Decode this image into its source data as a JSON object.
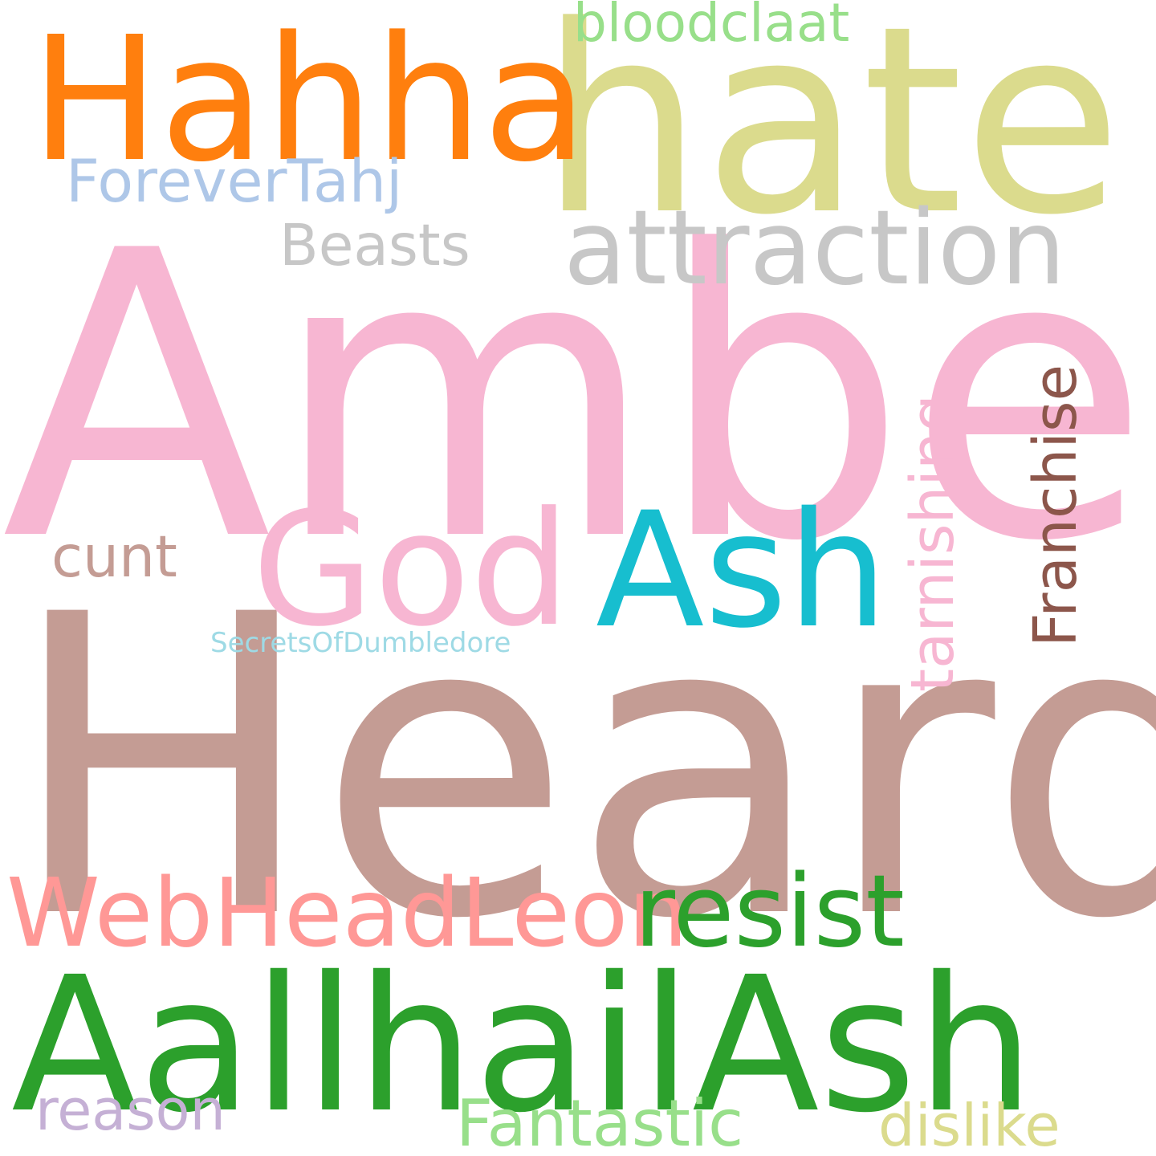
{
  "words": [
    {
      "text": "Amber",
      "color": "#f7b6d2"
    },
    {
      "text": "Heard",
      "color": "#c49c94"
    },
    {
      "text": "hate",
      "color": "#dbdb8d"
    },
    {
      "text": "Hahha",
      "color": "#ff7f0e"
    },
    {
      "text": "AallhailAsh",
      "color": "#2ca02c"
    },
    {
      "text": "attraction",
      "color": "#c7c7c7"
    },
    {
      "text": "God",
      "color": "#f7b6d2"
    },
    {
      "text": "Ash",
      "color": "#17becf"
    },
    {
      "text": "WebHeadLeon",
      "color": "#ff9896"
    },
    {
      "text": "resist",
      "color": "#2ca02c"
    },
    {
      "text": "ForeverTahj",
      "color": "#aec7e8"
    },
    {
      "text": "Beasts",
      "color": "#c7c7c7"
    },
    {
      "text": "bloodclaat",
      "color": "#98df8a"
    },
    {
      "text": "cunt",
      "color": "#c49c94"
    },
    {
      "text": "SecretsOfDumbledore",
      "color": "#9edae5"
    },
    {
      "text": "tarnishing",
      "color": "#f7b6d2"
    },
    {
      "text": "Franchise",
      "color": "#8c564b"
    },
    {
      "text": "reason",
      "color": "#c5b0d5"
    },
    {
      "text": "Fantastic",
      "color": "#98df8a"
    },
    {
      "text": "dislike",
      "color": "#dbdb8d"
    }
  ]
}
